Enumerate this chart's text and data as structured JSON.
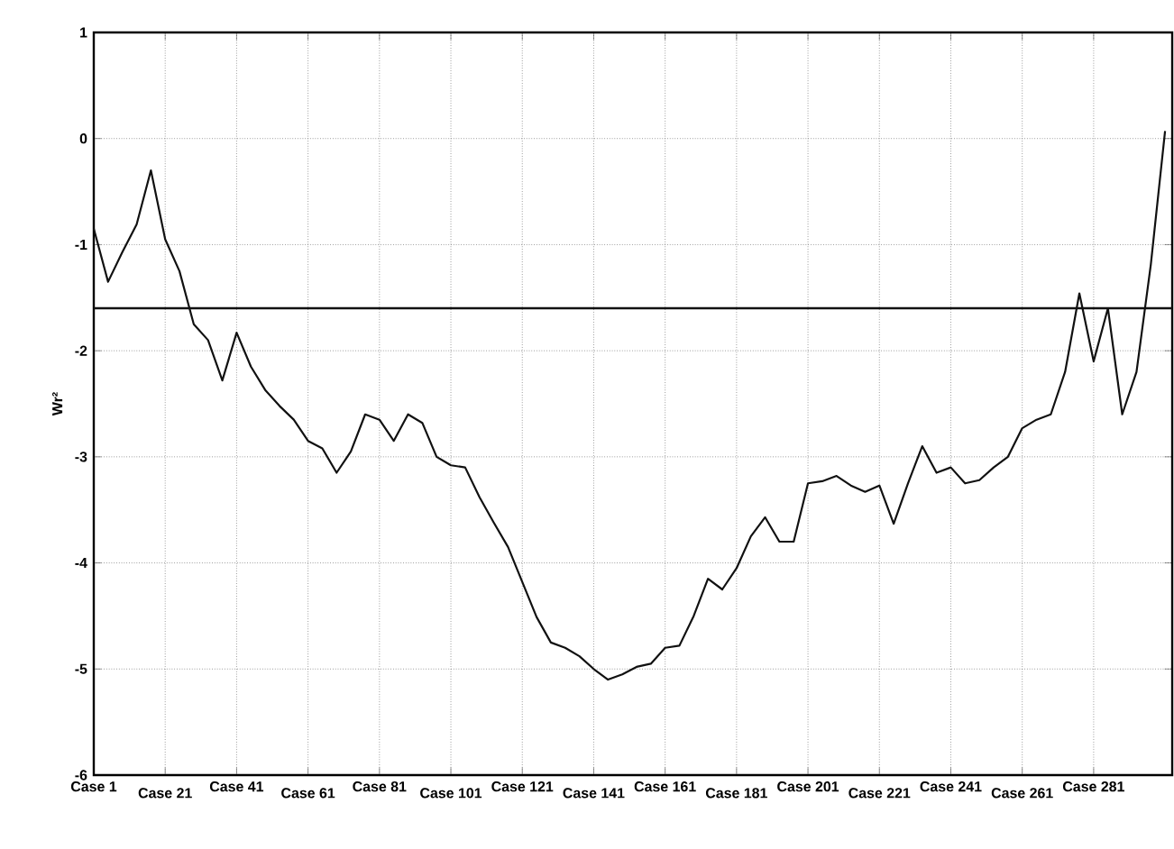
{
  "chart_data": {
    "type": "line",
    "ylabel": "Wr²",
    "categories": [
      "Case 1",
      null,
      null,
      null,
      null,
      "Case 21",
      null,
      null,
      null,
      null,
      "Case 41",
      null,
      null,
      null,
      null,
      "Case 61",
      null,
      null,
      null,
      null,
      "Case 81",
      null,
      null,
      null,
      null,
      "Case 101",
      null,
      null,
      null,
      null,
      "Case 121",
      null,
      null,
      null,
      null,
      "Case 141",
      null,
      null,
      null,
      null,
      "Case 161",
      null,
      null,
      null,
      null,
      "Case 181",
      null,
      null,
      null,
      null,
      "Case 201",
      null,
      null,
      null,
      null,
      "Case 221",
      null,
      null,
      null,
      null,
      "Case 241",
      null,
      null,
      null,
      null,
      "Case 261",
      null,
      null,
      null,
      null,
      "Case 281",
      null,
      null,
      null,
      null,
      null
    ],
    "series": [
      {
        "color": "#111111",
        "values": [
          -0.85,
          -1.35,
          -1.07,
          -0.81,
          -0.3,
          -0.95,
          -1.25,
          -1.75,
          -1.9,
          -2.28,
          -1.83,
          -2.15,
          -2.37,
          -2.52,
          -2.65,
          -2.85,
          -2.92,
          -3.15,
          -2.95,
          -2.6,
          -2.65,
          -2.85,
          -2.6,
          -2.68,
          -3.0,
          -3.08,
          -3.1,
          -3.38,
          -3.62,
          -3.85,
          -4.18,
          -4.51,
          -4.75,
          -4.8,
          -4.88,
          -5.0,
          -5.1,
          -5.05,
          -4.98,
          -4.95,
          -4.8,
          -4.78,
          -4.5,
          -4.15,
          -4.25,
          -4.05,
          -3.75,
          -3.57,
          -3.8,
          -3.8,
          -3.25,
          -3.23,
          -3.18,
          -3.27,
          -3.33,
          -3.27,
          -3.63,
          -3.25,
          -2.9,
          -3.15,
          -3.1,
          -3.25,
          -3.22,
          -3.1,
          -3.0,
          -2.73,
          -2.65,
          -2.6,
          -2.2,
          -1.46,
          -2.1,
          -1.6,
          -2.6,
          -2.2,
          -1.19,
          0.07
        ]
      }
    ],
    "ylim": [
      -6,
      1
    ],
    "yticks": [
      -6,
      -5,
      -4,
      -3,
      -2,
      -1,
      0,
      1
    ],
    "ref_lines": [
      {
        "axis": "y",
        "value": -1.6,
        "color": "#111111"
      }
    ],
    "grid": true,
    "line_style": "solid",
    "marker": "none"
  }
}
